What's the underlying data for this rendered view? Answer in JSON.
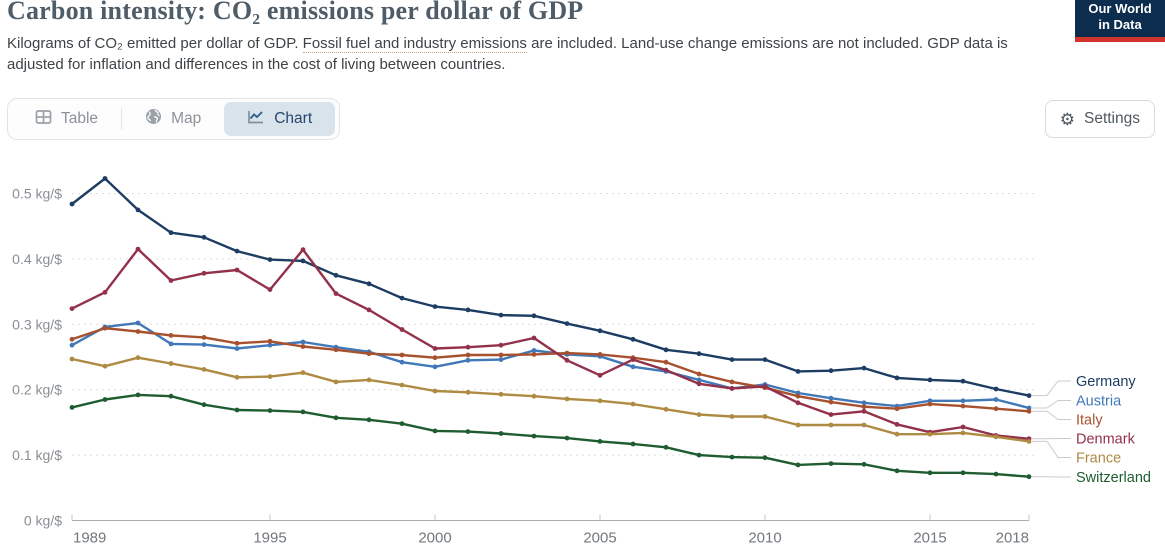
{
  "header": {
    "title": "Carbon intensity: CO₂ emissions per dollar of GDP",
    "subtitle_prefix": "Kilograms of CO₂ emitted per dollar of GDP. ",
    "subtitle_link": "Fossil fuel and industry emissions",
    "subtitle_suffix": " are included. Land-use change emissions are not included. GDP data is adjusted for inflation and differences in the cost of living between countries.",
    "logo": {
      "line1": "Our World",
      "line2": "in Data",
      "bg_color": "#0c2d4e",
      "bar_color": "#d0342c"
    }
  },
  "toolbar": {
    "tabs": [
      {
        "label": "Table",
        "icon": "table-grid-icon",
        "active": false
      },
      {
        "label": "Map",
        "icon": "globe-icon",
        "active": false
      },
      {
        "label": "Chart",
        "icon": "line-chart-icon",
        "active": true
      }
    ],
    "active_tab_bg": "#d9e3eb",
    "settings_label": "Settings"
  },
  "chart_data": {
    "type": "line",
    "unit": "kg/$",
    "grid": true,
    "legend_position": "right",
    "ylim": [
      0,
      0.55
    ],
    "years": [
      1989,
      1990,
      1991,
      1992,
      1993,
      1994,
      1995,
      1996,
      1997,
      1998,
      1999,
      2000,
      2001,
      2002,
      2003,
      2004,
      2005,
      2006,
      2007,
      2008,
      2009,
      2010,
      2011,
      2012,
      2013,
      2014,
      2015,
      2016,
      2017,
      2018
    ],
    "x_ticks": [
      {
        "year": 1989,
        "label": "1989"
      },
      {
        "year": 1995,
        "label": "1995"
      },
      {
        "year": 2000,
        "label": "2000"
      },
      {
        "year": 2005,
        "label": "2005"
      },
      {
        "year": 2010,
        "label": "2010"
      },
      {
        "year": 2015,
        "label": "2015"
      },
      {
        "year": 2018,
        "label": "2018"
      }
    ],
    "y_ticks": [
      {
        "value": 0,
        "label": "0 kg/$"
      },
      {
        "value": 0.1,
        "label": "0.1 kg/$"
      },
      {
        "value": 0.2,
        "label": "0.2 kg/$"
      },
      {
        "value": 0.3,
        "label": "0.3 kg/$"
      },
      {
        "value": 0.4,
        "label": "0.4 kg/$"
      },
      {
        "value": 0.5,
        "label": "0.5 kg/$"
      }
    ],
    "series": [
      {
        "name": "Germany",
        "color": "#1d3d63",
        "values": [
          0.484,
          0.523,
          0.475,
          0.44,
          0.433,
          0.412,
          0.399,
          0.397,
          0.375,
          0.362,
          0.34,
          0.327,
          0.322,
          0.314,
          0.313,
          0.301,
          0.29,
          0.277,
          0.261,
          0.255,
          0.246,
          0.246,
          0.228,
          0.229,
          0.233,
          0.218,
          0.215,
          0.213,
          0.201,
          0.191
        ]
      },
      {
        "name": "Austria",
        "color": "#4178b8",
        "values": [
          0.268,
          0.296,
          0.302,
          0.27,
          0.269,
          0.263,
          0.268,
          0.273,
          0.265,
          0.258,
          0.242,
          0.235,
          0.245,
          0.246,
          0.26,
          0.254,
          0.251,
          0.235,
          0.228,
          0.215,
          0.202,
          0.208,
          0.195,
          0.187,
          0.18,
          0.175,
          0.183,
          0.183,
          0.185,
          0.172
        ]
      },
      {
        "name": "Italy",
        "color": "#a8512e",
        "values": [
          0.277,
          0.294,
          0.289,
          0.283,
          0.28,
          0.271,
          0.274,
          0.266,
          0.261,
          0.255,
          0.253,
          0.249,
          0.253,
          0.253,
          0.254,
          0.256,
          0.254,
          0.249,
          0.242,
          0.224,
          0.212,
          0.203,
          0.19,
          0.181,
          0.174,
          0.171,
          0.178,
          0.175,
          0.171,
          0.167
        ]
      },
      {
        "name": "Denmark",
        "color": "#93304a",
        "values": [
          0.324,
          0.349,
          0.415,
          0.367,
          0.378,
          0.383,
          0.353,
          0.414,
          0.347,
          0.322,
          0.292,
          0.263,
          0.265,
          0.268,
          0.279,
          0.245,
          0.222,
          0.246,
          0.23,
          0.209,
          0.202,
          0.205,
          0.18,
          0.162,
          0.167,
          0.147,
          0.135,
          0.143,
          0.13,
          0.125
        ]
      },
      {
        "name": "France",
        "color": "#ae8a42",
        "values": [
          0.247,
          0.236,
          0.249,
          0.24,
          0.231,
          0.219,
          0.22,
          0.226,
          0.212,
          0.215,
          0.207,
          0.198,
          0.196,
          0.193,
          0.19,
          0.186,
          0.183,
          0.178,
          0.17,
          0.162,
          0.159,
          0.159,
          0.146,
          0.146,
          0.146,
          0.132,
          0.132,
          0.134,
          0.128,
          0.121
        ]
      },
      {
        "name": "Switzerland",
        "color": "#1f5d31",
        "values": [
          0.173,
          0.185,
          0.192,
          0.19,
          0.177,
          0.169,
          0.168,
          0.166,
          0.157,
          0.154,
          0.148,
          0.137,
          0.136,
          0.133,
          0.129,
          0.126,
          0.121,
          0.117,
          0.112,
          0.1,
          0.097,
          0.096,
          0.085,
          0.087,
          0.086,
          0.076,
          0.073,
          0.073,
          0.071,
          0.067
        ]
      }
    ]
  }
}
